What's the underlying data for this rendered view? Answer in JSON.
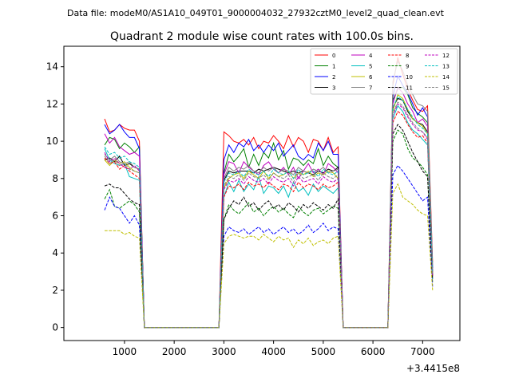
{
  "suptitle": "Data file: modeM0/AS1A10_049T01_9000004032_27932cztM0_level2_quad_clean.evt",
  "chart_data": {
    "type": "line",
    "title": "Quadrant 2 module wise count rates with 100.0s bins.",
    "xlabel": "",
    "ylabel": "",
    "x_offset_label": "+3.4415e8",
    "xlim": [
      -220,
      7750
    ],
    "ylim": [
      -0.7,
      15.1
    ],
    "xticks": [
      1000,
      2000,
      3000,
      4000,
      5000,
      6000,
      7000
    ],
    "yticks": [
      0,
      2,
      4,
      6,
      8,
      10,
      12,
      14
    ],
    "grid": false,
    "legend_position": "top-right",
    "legend_columns": 4,
    "x": [
      600,
      700,
      800,
      900,
      1000,
      1100,
      1200,
      1300,
      1400,
      1500,
      1600,
      1700,
      1800,
      1900,
      2000,
      2100,
      2200,
      2300,
      2400,
      2500,
      2600,
      2700,
      2800,
      2900,
      3000,
      3100,
      3200,
      3300,
      3400,
      3500,
      3600,
      3700,
      3800,
      3900,
      4000,
      4100,
      4200,
      4300,
      4400,
      4500,
      4600,
      4700,
      4800,
      4900,
      5000,
      5100,
      5200,
      5300,
      5400,
      5500,
      5600,
      5700,
      5800,
      5900,
      6000,
      6100,
      6200,
      6300,
      6400,
      6500,
      6600,
      6700,
      6800,
      6900,
      7000,
      7100,
      7200
    ],
    "segments": [
      {
        "label": "on1",
        "start": 600,
        "end": 1300
      },
      {
        "label": "gap1",
        "start": 1400,
        "end": 2900
      },
      {
        "label": "on2",
        "start": 3000,
        "end": 5300
      },
      {
        "label": "gap2",
        "start": 5400,
        "end": 6300
      },
      {
        "label": "on3",
        "start": 6400,
        "end": 7200
      }
    ],
    "series": [
      {
        "name": "0",
        "color": "#ff0000",
        "dash": false,
        "on1": [
          11.2,
          10.5,
          10.6,
          10.9,
          10.7,
          10.6,
          10.6,
          10.0
        ],
        "on2": [
          10.5,
          10.3,
          10.0,
          9.9,
          10.1,
          9.8,
          10.2,
          9.6,
          10.0,
          9.9,
          10.3,
          10.0,
          9.6,
          10.3,
          9.7,
          10.2,
          10.0,
          9.4,
          10.1,
          10.0,
          9.5,
          10.2,
          9.4,
          9.7
        ],
        "on3": [
          13.0,
          14.5,
          13.6,
          12.8,
          12.2,
          11.7,
          11.6,
          11.9,
          3.5
        ]
      },
      {
        "name": "1",
        "color": "#008000",
        "dash": false,
        "on1": [
          9.8,
          10.2,
          10.1,
          9.6,
          9.9,
          9.7,
          9.4,
          9.7
        ],
        "on2": [
          8.3,
          9.3,
          8.9,
          9.2,
          9.6,
          8.6,
          9.3,
          8.7,
          9.4,
          9.1,
          9.9,
          9.0,
          9.5,
          8.5,
          9.1,
          9.0,
          8.7,
          9.0,
          8.8,
          9.6,
          8.7,
          9.2,
          8.8,
          8.6
        ],
        "on3": [
          12.2,
          12.8,
          12.9,
          12.5,
          11.8,
          11.5,
          11.3,
          11.0,
          3.0
        ]
      },
      {
        "name": "2",
        "color": "#0000ff",
        "dash": false,
        "on1": [
          10.9,
          10.4,
          10.6,
          10.9,
          10.5,
          10.2,
          10.2,
          9.6
        ],
        "on2": [
          9.0,
          9.8,
          9.4,
          9.9,
          9.7,
          10.1,
          9.5,
          9.8,
          9.4,
          9.8,
          9.5,
          9.9,
          9.2,
          9.5,
          9.8,
          9.2,
          9.0,
          9.3,
          9.1,
          9.9,
          9.5,
          10.0,
          9.3,
          9.3
        ],
        "on3": [
          12.4,
          13.5,
          13.0,
          12.6,
          12.0,
          11.4,
          11.8,
          11.3,
          3.2
        ]
      },
      {
        "name": "3",
        "color": "#000000",
        "dash": false,
        "on1": [
          9.0,
          9.1,
          8.9,
          9.2,
          8.7,
          8.8,
          8.6,
          8.5
        ],
        "on2": [
          7.9,
          8.4,
          8.3,
          8.4,
          8.4,
          8.4,
          8.3,
          8.5,
          8.4,
          8.5,
          8.6,
          8.5,
          8.4,
          8.3,
          8.4,
          8.3,
          8.4,
          8.3,
          8.2,
          8.4,
          8.3,
          8.5,
          8.4,
          8.6
        ],
        "on3": [
          11.8,
          12.3,
          12.2,
          11.6,
          11.2,
          11.0,
          10.9,
          10.5,
          2.8
        ]
      },
      {
        "name": "4",
        "color": "#bf00bf",
        "dash": false,
        "on1": [
          10.4,
          9.9,
          10.2,
          9.7,
          9.5,
          9.3,
          9.4,
          9.2
        ],
        "on2": [
          8.2,
          8.9,
          8.8,
          8.3,
          8.9,
          8.6,
          8.4,
          8.2,
          8.7,
          8.9,
          8.5,
          8.3,
          8.6,
          8.2,
          8.6,
          8.0,
          8.4,
          8.8,
          8.3,
          8.5,
          8.2,
          8.8,
          8.6,
          8.3
        ],
        "on3": [
          12.0,
          12.9,
          12.6,
          12.0,
          11.6,
          11.0,
          11.2,
          10.8,
          3.0
        ]
      },
      {
        "name": "5",
        "color": "#00bfbf",
        "dash": false,
        "on1": [
          9.6,
          9.0,
          8.8,
          8.7,
          8.8,
          8.1,
          8.0,
          7.9
        ],
        "on2": [
          7.0,
          7.8,
          7.3,
          7.9,
          7.3,
          7.7,
          7.4,
          8.1,
          7.2,
          7.6,
          7.5,
          7.2,
          7.6,
          7.0,
          7.8,
          7.3,
          7.5,
          7.1,
          7.7,
          7.3,
          7.6,
          7.4,
          7.2,
          7.5
        ],
        "on3": [
          11.2,
          11.9,
          11.6,
          11.0,
          10.6,
          10.4,
          10.1,
          9.8,
          2.6
        ]
      },
      {
        "name": "6",
        "color": "#bfbf00",
        "dash": false,
        "on1": [
          9.0,
          8.7,
          9.0,
          8.8,
          8.9,
          8.6,
          8.4,
          8.3
        ],
        "on2": [
          7.5,
          8.0,
          8.2,
          8.3,
          8.0,
          8.4,
          8.2,
          8.0,
          8.4,
          8.0,
          8.3,
          8.1,
          8.2,
          8.4,
          8.0,
          8.3,
          8.2,
          8.4,
          8.1,
          8.3,
          8.2,
          8.4,
          8.3,
          8.0
        ],
        "on3": [
          11.6,
          12.5,
          12.3,
          11.7,
          11.2,
          11.0,
          10.8,
          10.4,
          2.8
        ]
      },
      {
        "name": "7",
        "color": "#808080",
        "dash": false,
        "on1": [
          9.3,
          9.0,
          9.2,
          8.9,
          8.8,
          8.9,
          8.6,
          8.5
        ],
        "on2": [
          8.0,
          8.6,
          8.4,
          8.6,
          8.5,
          8.7,
          8.4,
          8.3,
          8.6,
          8.4,
          8.6,
          8.3,
          8.5,
          8.4,
          8.2,
          8.6,
          8.4,
          8.3,
          8.5,
          8.4,
          8.6,
          8.3,
          8.4,
          8.5
        ],
        "on3": [
          13.2,
          14.3,
          13.8,
          13.0,
          12.5,
          12.0,
          11.9,
          11.6,
          3.3
        ]
      },
      {
        "name": "8",
        "color": "#ff0000",
        "dash": true,
        "on1": [
          9.1,
          8.8,
          8.9,
          8.5,
          8.7,
          8.4,
          8.2,
          8.0
        ],
        "on2": [
          7.0,
          7.6,
          7.5,
          7.7,
          7.4,
          7.8,
          7.6,
          7.7,
          7.5,
          7.8,
          7.6,
          7.4,
          7.7,
          7.6,
          7.3,
          7.8,
          7.5,
          7.7,
          7.6,
          7.4,
          7.7,
          7.5,
          7.6,
          7.8
        ],
        "on3": [
          11.0,
          11.6,
          11.4,
          10.9,
          10.5,
          10.2,
          10.3,
          9.9,
          2.7
        ]
      },
      {
        "name": "9",
        "color": "#008000",
        "dash": true,
        "on1": [
          6.9,
          7.4,
          6.5,
          6.4,
          6.6,
          6.8,
          6.6,
          6.2
        ],
        "on2": [
          5.8,
          6.6,
          6.3,
          6.1,
          6.4,
          6.7,
          6.2,
          6.4,
          6.0,
          6.3,
          6.5,
          6.2,
          6.4,
          6.1,
          5.9,
          6.5,
          6.2,
          6.0,
          6.3,
          6.4,
          6.1,
          6.3,
          6.5,
          6.4
        ],
        "on3": [
          10.0,
          10.6,
          10.4,
          9.6,
          9.1,
          8.9,
          8.6,
          8.2,
          2.4
        ]
      },
      {
        "name": "10",
        "color": "#0000ff",
        "dash": true,
        "on1": [
          6.3,
          7.0,
          6.5,
          6.4,
          6.0,
          5.6,
          6.0,
          5.5
        ],
        "on2": [
          4.9,
          5.4,
          5.2,
          5.1,
          5.3,
          5.0,
          5.2,
          5.4,
          5.1,
          5.3,
          5.0,
          5.2,
          5.4,
          5.1,
          5.3,
          5.0,
          5.2,
          5.5,
          5.1,
          5.3,
          5.6,
          5.2,
          5.4,
          5.3
        ],
        "on3": [
          8.2,
          8.7,
          8.4,
          8.0,
          7.6,
          7.2,
          6.8,
          7.0,
          2.2
        ]
      },
      {
        "name": "11",
        "color": "#000000",
        "dash": true,
        "on1": [
          7.6,
          7.7,
          7.5,
          7.5,
          7.2,
          6.9,
          6.7,
          6.6
        ],
        "on2": [
          5.8,
          6.4,
          6.8,
          6.6,
          7.0,
          6.5,
          6.7,
          6.3,
          6.6,
          6.8,
          6.4,
          6.6,
          6.3,
          6.7,
          6.5,
          6.2,
          6.6,
          6.4,
          6.7,
          6.5,
          6.3,
          6.6,
          6.4,
          6.9
        ],
        "on3": [
          10.4,
          10.9,
          10.6,
          10.0,
          9.4,
          8.9,
          8.4,
          8.1,
          2.6
        ]
      },
      {
        "name": "12",
        "color": "#bf00bf",
        "dash": true,
        "on1": [
          9.4,
          8.9,
          9.1,
          8.8,
          8.6,
          8.5,
          8.7,
          8.4
        ],
        "on2": [
          7.4,
          7.9,
          7.8,
          8.0,
          7.7,
          8.1,
          7.9,
          7.8,
          8.0,
          7.7,
          8.1,
          7.9,
          7.8,
          8.0,
          7.6,
          8.1,
          7.8,
          7.9,
          8.0,
          7.7,
          8.1,
          7.9,
          7.8,
          8.0
        ],
        "on3": [
          11.4,
          12.0,
          11.8,
          11.3,
          10.9,
          10.6,
          10.5,
          10.1,
          2.8
        ]
      },
      {
        "name": "13",
        "color": "#00bfbf",
        "dash": true,
        "on1": [
          9.7,
          9.3,
          9.4,
          9.1,
          9.2,
          8.9,
          8.8,
          8.6
        ],
        "on2": [
          7.8,
          8.3,
          8.2,
          8.4,
          8.1,
          8.5,
          8.3,
          8.2,
          8.4,
          8.1,
          8.5,
          8.3,
          8.2,
          8.4,
          8.0,
          8.5,
          8.2,
          8.3,
          8.4,
          8.1,
          8.5,
          8.3,
          8.2,
          8.4
        ],
        "on3": [
          11.8,
          12.4,
          12.2,
          11.7,
          11.3,
          10.9,
          10.7,
          10.4,
          2.9
        ]
      },
      {
        "name": "14",
        "color": "#bfbf00",
        "dash": true,
        "on1": [
          5.2,
          5.2,
          5.2,
          5.2,
          5.0,
          5.1,
          4.9,
          4.8
        ],
        "on2": [
          4.5,
          4.9,
          5.0,
          4.9,
          4.8,
          4.9,
          4.9,
          4.7,
          5.0,
          4.8,
          4.6,
          4.9,
          4.7,
          4.8,
          4.3,
          4.7,
          4.5,
          4.8,
          4.4,
          4.6,
          4.7,
          4.5,
          4.8,
          4.9
        ],
        "on3": [
          7.2,
          7.7,
          7.0,
          6.8,
          6.6,
          6.3,
          6.1,
          6.0,
          2.0
        ]
      },
      {
        "name": "15",
        "color": "#808080",
        "dash": true,
        "on1": [
          9.2,
          8.8,
          9.0,
          8.7,
          8.8,
          8.5,
          8.4,
          8.3
        ],
        "on2": [
          7.6,
          8.1,
          8.0,
          8.2,
          7.9,
          8.3,
          8.1,
          8.0,
          8.2,
          7.9,
          8.3,
          8.1,
          8.0,
          8.2,
          7.8,
          8.3,
          8.0,
          8.1,
          8.2,
          7.9,
          8.3,
          8.1,
          8.0,
          8.2
        ],
        "on3": [
          11.5,
          12.1,
          11.9,
          11.4,
          11.0,
          10.7,
          10.5,
          10.2,
          2.8
        ]
      }
    ]
  }
}
